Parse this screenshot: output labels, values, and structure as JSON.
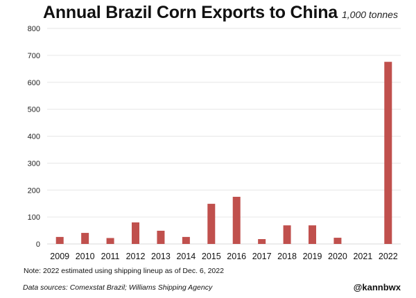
{
  "chart_data": {
    "type": "bar",
    "title": "Annual Brazil Corn Exports to China",
    "subtitle": "1,000 tonnes",
    "xlabel": "",
    "ylabel": "",
    "categories": [
      "2009",
      "2010",
      "2011",
      "2012",
      "2013",
      "2014",
      "2015",
      "2016",
      "2017",
      "2018",
      "2019",
      "2020",
      "2021",
      "2022"
    ],
    "values": [
      26,
      41,
      22,
      80,
      49,
      26,
      149,
      175,
      18,
      69,
      69,
      23,
      0,
      676
    ],
    "ylim": [
      0,
      800
    ],
    "yticks": [
      0,
      100,
      200,
      300,
      400,
      500,
      600,
      700,
      800
    ],
    "grid": true,
    "bar_color": "#c0504d",
    "legend": "none"
  },
  "footer": {
    "note": "Note: 2022 estimated using shipping lineup as of Dec. 6, 2022",
    "source": "Data sources: Comexstat Brazil; Williams Shipping Agency",
    "handle": "@kannbwx"
  }
}
